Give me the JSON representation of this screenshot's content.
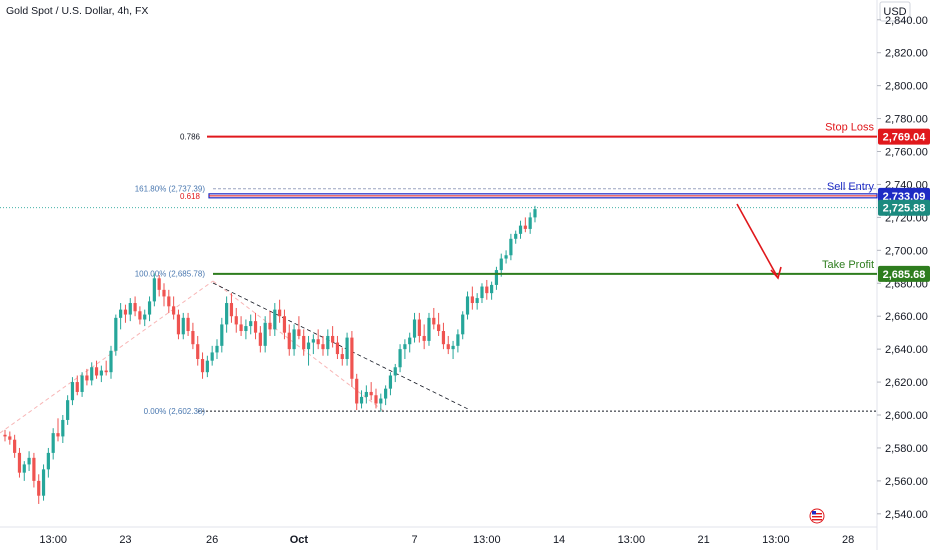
{
  "header": {
    "title": "Gold Spot / U.S. Dollar, 4h, FX"
  },
  "axis": {
    "currency": "USD"
  },
  "colors": {
    "up": "#26a69a",
    "down": "#ef5350",
    "stop": "#e0181c",
    "entry": "#1e2bc4",
    "profit": "#2e7d1e",
    "fib_neutral": "#787b86"
  },
  "chart_data": {
    "type": "candlestick",
    "title": "Gold Spot / U.S. Dollar, 4h, FX",
    "ylim": [
      2532,
      2852
    ],
    "y_ticks": [
      2540,
      2560,
      2580,
      2600,
      2620,
      2640,
      2660,
      2680,
      2700,
      2720,
      2740,
      2760,
      2780,
      2800,
      2820,
      2840
    ],
    "y_tick_labels": [
      "2,540.00",
      "2,560.00",
      "2,580.00",
      "2,600.00",
      "2,620.00",
      "2,640.00",
      "2,660.00",
      "2,680.00",
      "2,700.00",
      "2,720.00",
      "2,740.00",
      "2,760.00",
      "2,780.00",
      "2,800.00",
      "2,820.00",
      "2,840.00"
    ],
    "x_ticks": [
      {
        "label": "13:00",
        "i": 10
      },
      {
        "label": "23",
        "i": 25
      },
      {
        "label": "26",
        "i": 43
      },
      {
        "label": "Oct",
        "i": 61
      },
      {
        "label": "7",
        "i": 85
      },
      {
        "label": "13:00",
        "i": 100
      },
      {
        "label": "14",
        "i": 115
      },
      {
        "label": "13:00",
        "i": 130
      },
      {
        "label": "21",
        "i": 145
      },
      {
        "label": "13:00",
        "i": 160
      },
      {
        "label": "28",
        "i": 175
      }
    ],
    "candles": [
      [
        2588,
        2591,
        2584,
        2587
      ],
      [
        2587,
        2590,
        2582,
        2585
      ],
      [
        2585,
        2588,
        2574,
        2577
      ],
      [
        2577,
        2580,
        2562,
        2565
      ],
      [
        2565,
        2572,
        2560,
        2570
      ],
      [
        2570,
        2578,
        2566,
        2574
      ],
      [
        2574,
        2577,
        2556,
        2560
      ],
      [
        2560,
        2564,
        2546,
        2551
      ],
      [
        2551,
        2570,
        2548,
        2567
      ],
      [
        2567,
        2580,
        2562,
        2577
      ],
      [
        2577,
        2592,
        2573,
        2589
      ],
      [
        2589,
        2598,
        2584,
        2587
      ],
      [
        2587,
        2600,
        2583,
        2597
      ],
      [
        2597,
        2612,
        2594,
        2609
      ],
      [
        2609,
        2623,
        2606,
        2620
      ],
      [
        2620,
        2624,
        2612,
        2614
      ],
      [
        2614,
        2626,
        2611,
        2624
      ],
      [
        2624,
        2628,
        2618,
        2621
      ],
      [
        2621,
        2632,
        2618,
        2629
      ],
      [
        2629,
        2633,
        2622,
        2624
      ],
      [
        2624,
        2630,
        2620,
        2627
      ],
      [
        2627,
        2633,
        2624,
        2626
      ],
      [
        2626,
        2642,
        2622,
        2639
      ],
      [
        2639,
        2661,
        2636,
        2659
      ],
      [
        2659,
        2668,
        2652,
        2664
      ],
      [
        2664,
        2667,
        2656,
        2661
      ],
      [
        2661,
        2671,
        2657,
        2668
      ],
      [
        2668,
        2672,
        2660,
        2663
      ],
      [
        2663,
        2666,
        2655,
        2658
      ],
      [
        2658,
        2664,
        2654,
        2661
      ],
      [
        2661,
        2672,
        2657,
        2669
      ],
      [
        2669,
        2686,
        2666,
        2683
      ],
      [
        2683,
        2685,
        2672,
        2676
      ],
      [
        2676,
        2680,
        2666,
        2672
      ],
      [
        2672,
        2676,
        2662,
        2666
      ],
      [
        2666,
        2672,
        2658,
        2661
      ],
      [
        2661,
        2664,
        2646,
        2649
      ],
      [
        2649,
        2662,
        2646,
        2659
      ],
      [
        2659,
        2662,
        2648,
        2651
      ],
      [
        2651,
        2656,
        2640,
        2643
      ],
      [
        2643,
        2648,
        2630,
        2634
      ],
      [
        2634,
        2638,
        2622,
        2626
      ],
      [
        2626,
        2636,
        2623,
        2633
      ],
      [
        2633,
        2642,
        2630,
        2638
      ],
      [
        2638,
        2646,
        2634,
        2642
      ],
      [
        2642,
        2659,
        2638,
        2655
      ],
      [
        2655,
        2672,
        2650,
        2668
      ],
      [
        2668,
        2674,
        2656,
        2660
      ],
      [
        2660,
        2665,
        2650,
        2655
      ],
      [
        2655,
        2660,
        2648,
        2651
      ],
      [
        2651,
        2658,
        2646,
        2654
      ],
      [
        2654,
        2661,
        2649,
        2657
      ],
      [
        2657,
        2662,
        2646,
        2650
      ],
      [
        2650,
        2654,
        2638,
        2642
      ],
      [
        2642,
        2660,
        2638,
        2656
      ],
      [
        2656,
        2663,
        2648,
        2652
      ],
      [
        2652,
        2668,
        2648,
        2664
      ],
      [
        2664,
        2670,
        2656,
        2660
      ],
      [
        2660,
        2664,
        2646,
        2650
      ],
      [
        2650,
        2655,
        2636,
        2640
      ],
      [
        2640,
        2655,
        2636,
        2652
      ],
      [
        2652,
        2660,
        2646,
        2648
      ],
      [
        2648,
        2652,
        2636,
        2640
      ],
      [
        2640,
        2648,
        2630,
        2644
      ],
      [
        2644,
        2649,
        2637,
        2646
      ],
      [
        2646,
        2652,
        2640,
        2643
      ],
      [
        2643,
        2648,
        2636,
        2640
      ],
      [
        2640,
        2652,
        2636,
        2648
      ],
      [
        2648,
        2654,
        2641,
        2644
      ],
      [
        2644,
        2648,
        2634,
        2637
      ],
      [
        2637,
        2641,
        2630,
        2634
      ],
      [
        2634,
        2650,
        2630,
        2647
      ],
      [
        2647,
        2651,
        2617,
        2622
      ],
      [
        2622,
        2625,
        2603,
        2607
      ],
      [
        2607,
        2615,
        2604,
        2611
      ],
      [
        2611,
        2618,
        2607,
        2614
      ],
      [
        2614,
        2620,
        2609,
        2612
      ],
      [
        2612,
        2616,
        2604,
        2607
      ],
      [
        2607,
        2613,
        2602,
        2610
      ],
      [
        2610,
        2618,
        2606,
        2616
      ],
      [
        2616,
        2626,
        2612,
        2624
      ],
      [
        2624,
        2631,
        2620,
        2629
      ],
      [
        2629,
        2643,
        2626,
        2640
      ],
      [
        2640,
        2646,
        2634,
        2643
      ],
      [
        2643,
        2650,
        2638,
        2647
      ],
      [
        2647,
        2662,
        2644,
        2658
      ],
      [
        2658,
        2662,
        2644,
        2648
      ],
      [
        2648,
        2655,
        2640,
        2645
      ],
      [
        2645,
        2662,
        2642,
        2659
      ],
      [
        2659,
        2665,
        2652,
        2655
      ],
      [
        2655,
        2662,
        2648,
        2651
      ],
      [
        2651,
        2656,
        2640,
        2643
      ],
      [
        2643,
        2648,
        2637,
        2640
      ],
      [
        2640,
        2645,
        2634,
        2642
      ],
      [
        2642,
        2652,
        2638,
        2649
      ],
      [
        2649,
        2663,
        2646,
        2661
      ],
      [
        2661,
        2675,
        2658,
        2672
      ],
      [
        2672,
        2678,
        2664,
        2668
      ],
      [
        2668,
        2674,
        2664,
        2671
      ],
      [
        2671,
        2680,
        2668,
        2678
      ],
      [
        2678,
        2682,
        2670,
        2674
      ],
      [
        2674,
        2681,
        2670,
        2679
      ],
      [
        2679,
        2690,
        2676,
        2688
      ],
      [
        2688,
        2698,
        2684,
        2695
      ],
      [
        2695,
        2700,
        2692,
        2697
      ],
      [
        2697,
        2710,
        2694,
        2707
      ],
      [
        2707,
        2712,
        2704,
        2710
      ],
      [
        2710,
        2718,
        2707,
        2715
      ],
      [
        2715,
        2720,
        2711,
        2713
      ],
      [
        2713,
        2723,
        2710,
        2720
      ],
      [
        2720,
        2727,
        2717,
        2725
      ]
    ],
    "candle_start_index": 0,
    "levels": [
      {
        "name": "Stop Loss",
        "value": 2769.04,
        "price_label": "2,769.04",
        "fib_label": "0.786"
      },
      {
        "name": "Sell Entry",
        "value": 2733.09,
        "price_label": "2,733.09",
        "fib_label": "0.618"
      },
      {
        "name": "Take Profit",
        "value": 2685.68,
        "price_label": "2,685.68"
      }
    ],
    "current_price": {
      "value": 2725.88,
      "label": "2,725.88"
    },
    "fib_extension": [
      {
        "label": "161.80% (2,737.39)",
        "value": 2737.39
      },
      {
        "label": "100.00% (2,685.78)",
        "value": 2685.78
      },
      {
        "label": "0.00% (2,602.38)",
        "value": 2602.38
      }
    ]
  }
}
